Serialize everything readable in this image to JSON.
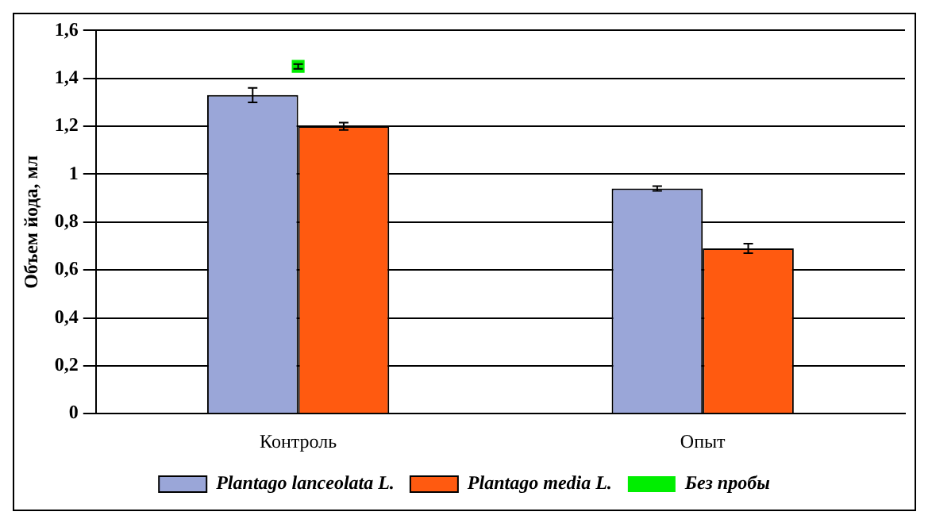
{
  "chart_data": {
    "type": "bar",
    "ylabel": "Объем йода, мл",
    "categories": [
      "Контроль",
      "Опыт"
    ],
    "series": [
      {
        "name": "Plantago lanceolata L.",
        "color": "#9aa6d8",
        "values": [
          1.33,
          0.94
        ],
        "errors": [
          0.03,
          0.01
        ]
      },
      {
        "name": "Plantago media L.",
        "color": "#ff5a10",
        "values": [
          1.2,
          0.69
        ],
        "errors": [
          0.015,
          0.02
        ]
      },
      {
        "name": "Без пробы",
        "type": "line",
        "color": "#00ee00",
        "marker": "square",
        "values": [
          1.45,
          null
        ],
        "errors": [
          0.01,
          null
        ]
      }
    ],
    "ylim": [
      0,
      1.6
    ],
    "yticks": [
      0,
      {
        "value": 0.2,
        "label": "0,2"
      },
      {
        "value": 0.4,
        "label": "0,4"
      },
      {
        "value": 0.6,
        "label": "0,6"
      },
      {
        "value": 0.8,
        "label": "0,8"
      },
      1,
      {
        "value": 1.2,
        "label": "1,2"
      },
      {
        "value": 1.4,
        "label": "1,4"
      },
      {
        "value": 1.6,
        "label": "1,6"
      }
    ],
    "grid": "y",
    "legend": "bottom"
  }
}
